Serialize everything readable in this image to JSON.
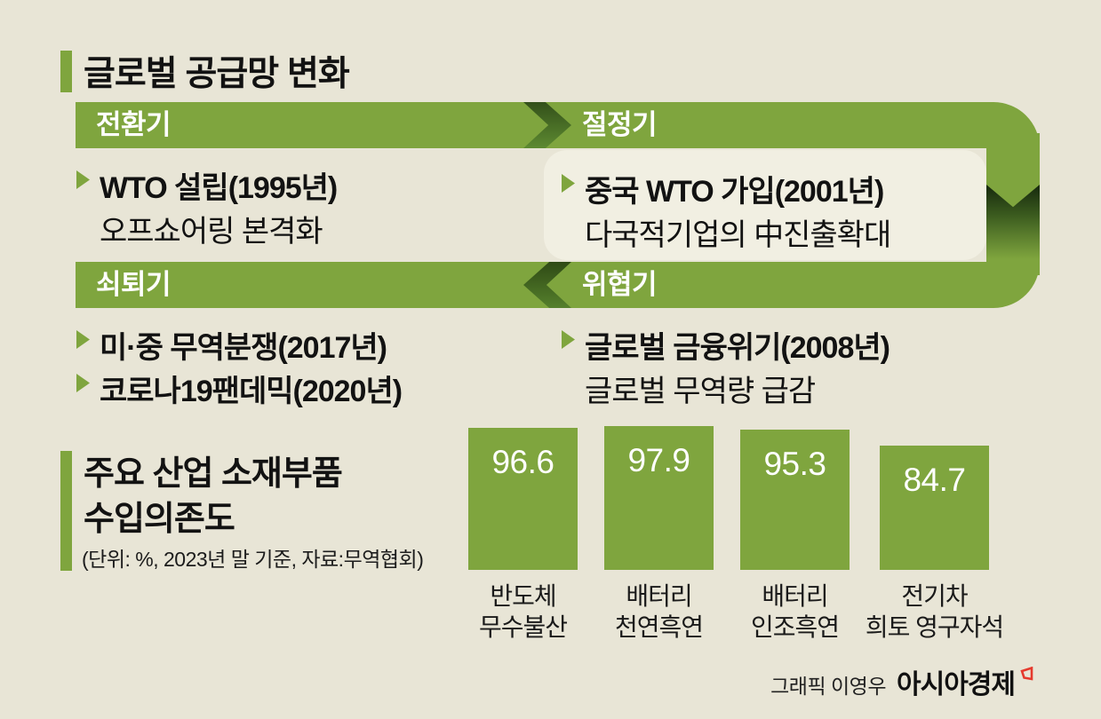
{
  "header": {
    "title": "글로벌 공급망 변화"
  },
  "flow": {
    "phases": [
      {
        "label": "전환기",
        "line1": "WTO 설립(1995년)",
        "line2": "오프쇼어링 본격화"
      },
      {
        "label": "절정기",
        "line1": "중국 WTO 가입(2001년)",
        "line2": "다국적기업의 中진출확대"
      },
      {
        "label": "쇠퇴기",
        "line1": "미·중 무역분쟁(2017년)",
        "line2": "코로나19팬데믹(2020년)"
      },
      {
        "label": "위협기",
        "line1": "글로벌 금융위기(2008년)",
        "line2": "글로벌 무역량 급감"
      }
    ]
  },
  "chart_section": {
    "title_line1": "주요 산업 소재부품",
    "title_line2": "수입의존도",
    "subtitle": "(단위: %, 2023년 말 기준, 자료:무역협회)"
  },
  "chart_data": {
    "type": "bar",
    "title": "주요 산업 소재부품 수입의존도",
    "unit": "%",
    "ylim": [
      0,
      100
    ],
    "categories": [
      "반도체 무수불산",
      "배터리 천연흑연",
      "배터리 인조흑연",
      "전기차 희토 영구자석"
    ],
    "category_lines": [
      [
        "반도체",
        "무수불산"
      ],
      [
        "배터리",
        "천연흑연"
      ],
      [
        "배터리",
        "인조흑연"
      ],
      [
        "전기차",
        "희토 영구자석"
      ]
    ],
    "values": [
      96.6,
      97.9,
      95.3,
      84.7
    ]
  },
  "credit": {
    "label": "그래픽 이영우",
    "brand": "아시아경제"
  },
  "colors": {
    "green": "#7fa53e",
    "dark_green": "#3f6020",
    "background": "#e8e5d6",
    "panel": "#f1efe2",
    "text": "#121212",
    "brand_red": "#e53a2d"
  }
}
